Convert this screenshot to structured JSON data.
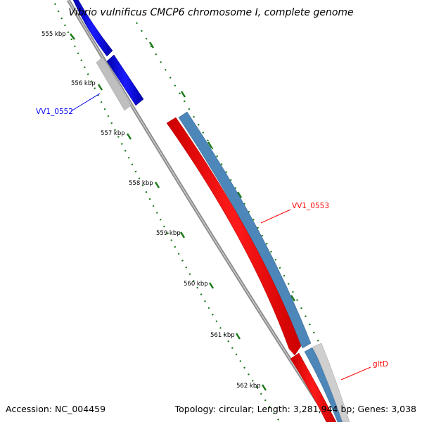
{
  "title": "Vibrio vulnificus CMCP6 chromosome I, complete genome",
  "footer": {
    "accession": "Accession: NC_004459",
    "summary": "Topology: circular; Length: 3,281,944 bp; Genes: 3,038"
  },
  "ticks": [
    "555 kbp",
    "556 kbp",
    "557 kbp",
    "558 kbp",
    "559 kbp",
    "560 kbp",
    "561 kbp",
    "562 kbp"
  ],
  "genes": {
    "vv1_0552": "VV1_0552",
    "vv1_0553": "VV1_0553",
    "gltd": "gltD"
  },
  "colors": {
    "backbone": "#8c8c8c",
    "forward_gene": "#0000ee",
    "reverse_gene": "#ff0000",
    "cds_feature": "#4d86b8",
    "neutral_feature": "#bfbfbf",
    "tick_marks": "#1a7a1a"
  }
}
